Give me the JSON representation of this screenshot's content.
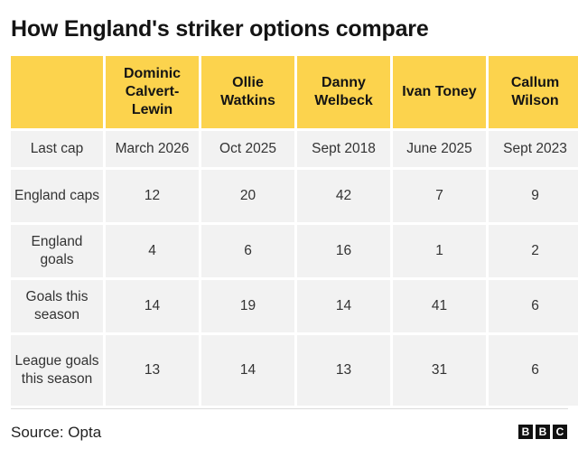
{
  "title": "How England's striker options compare",
  "chart_data": {
    "type": "table",
    "columns": [
      "Dominic Calvert-Lewin",
      "Ollie Watkins",
      "Danny Welbeck",
      "Ivan Toney",
      "Callum Wilson"
    ],
    "rows": [
      {
        "label": "Last cap",
        "values": [
          "March 2026",
          "Oct 2025",
          "Sept 2018",
          "June 2025",
          "Sept 2023"
        ]
      },
      {
        "label": "England caps",
        "values": [
          "12",
          "20",
          "42",
          "7",
          "9"
        ]
      },
      {
        "label": "England goals",
        "values": [
          "4",
          "6",
          "16",
          "1",
          "2"
        ]
      },
      {
        "label": "Goals this season",
        "values": [
          "14",
          "19",
          "14",
          "41",
          "6"
        ]
      },
      {
        "label": "League goals this season",
        "values": [
          "13",
          "14",
          "13",
          "31",
          "6"
        ]
      }
    ]
  },
  "source": "Source: Opta",
  "logo": {
    "letters": [
      "B",
      "B",
      "C"
    ]
  },
  "colors": {
    "header_bg": "#fcd34d",
    "cell_bg": "#f2f2f2"
  }
}
